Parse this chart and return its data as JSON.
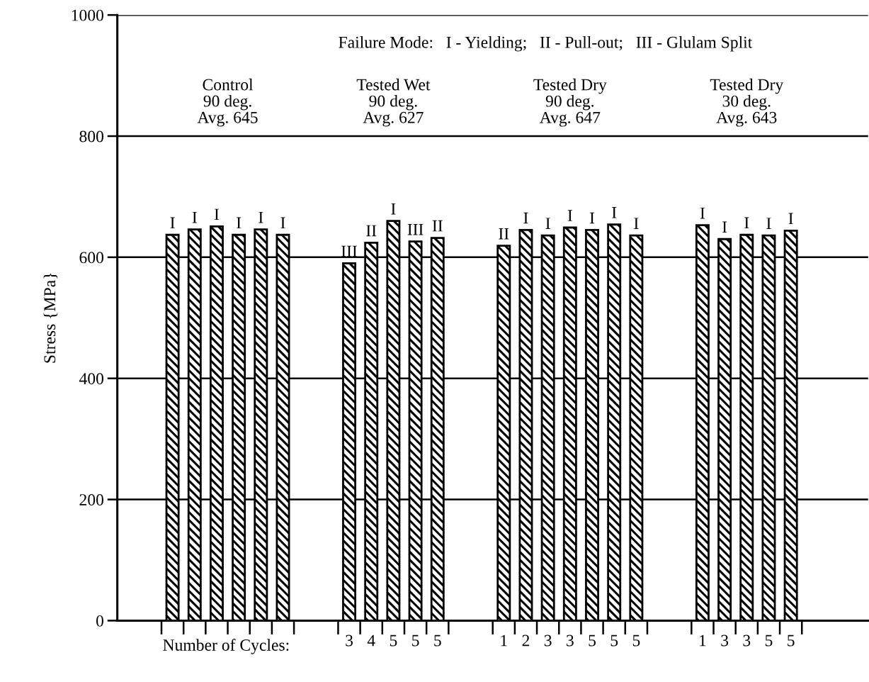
{
  "chart_data": {
    "type": "bar",
    "ylabel": "Stress {MPa}",
    "xlabel": "Number of Cycles:",
    "categories": [
      null,
      null,
      null,
      null,
      null,
      null,
      null,
      null,
      null,
      null,
      "3",
      "4",
      "5",
      "5",
      "5",
      null,
      null,
      "1",
      "2",
      "3",
      "3",
      "5",
      "5",
      "5",
      null,
      null,
      "1",
      "3",
      "3",
      "5",
      "5",
      null,
      null,
      null
    ],
    "series": [
      {
        "color": "#000000",
        "values": [
          null,
          null,
          637,
          646,
          651,
          637,
          646,
          637,
          null,
          null,
          590,
          624,
          660,
          626,
          632,
          null,
          null,
          619,
          645,
          636,
          649,
          645,
          654,
          636,
          null,
          null,
          653,
          630,
          637,
          636,
          644,
          null,
          null,
          null
        ],
        "value_labels": [
          null,
          null,
          "I",
          "I",
          "I",
          "I",
          "I",
          "I",
          null,
          null,
          "III",
          "II",
          "I",
          "III",
          "II",
          null,
          null,
          "II",
          "I",
          "I",
          "I",
          "I",
          "I",
          "I",
          null,
          null,
          "I",
          "I",
          "I",
          "I",
          "I",
          null,
          null,
          null
        ]
      }
    ],
    "ylim": [
      0,
      1000
    ],
    "yticks": [
      0,
      200,
      400,
      600,
      800,
      1000
    ],
    "grid": "y",
    "annotations": [
      "Failure Mode:   I - Yielding;   II - Pull-out;   III - Glulam Split",
      "Control\n90 deg.\nAvg. 645",
      "Tested Wet\n90 deg.\nAvg. 627",
      "Tested Dry\n90 deg.\nAvg. 647",
      "Tested Dry\n30 deg.\nAvg. 643"
    ]
  }
}
